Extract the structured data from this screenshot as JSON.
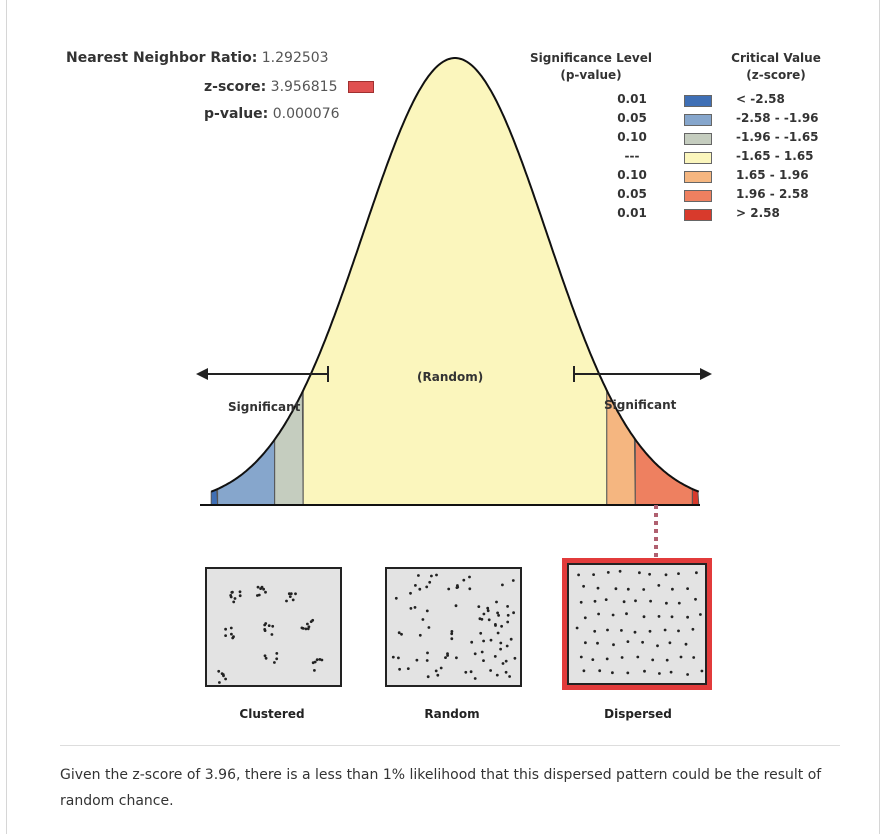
{
  "stats": {
    "nnr_label": "Nearest Neighbor Ratio:",
    "nnr_value": "1.292503",
    "z_label": "z-score:",
    "z_value": "3.956815",
    "p_label": "p-value:",
    "p_value": "0.000076"
  },
  "legend": {
    "sig_header_1": "Significance Level",
    "sig_header_2": "(p-value)",
    "crit_header_1": "Critical Value",
    "crit_header_2": "(z-score)",
    "rows": [
      {
        "p": "0.01",
        "z": "< -2.58",
        "color": "#3f6fb5"
      },
      {
        "p": "0.05",
        "z": "-2.58 - -1.96",
        "color": "#86a6cc"
      },
      {
        "p": "0.10",
        "z": "-1.96 - -1.65",
        "color": "#c5cdbf"
      },
      {
        "p": "---",
        "z": "-1.65 - 1.65",
        "color": "#fbf6bd"
      },
      {
        "p": "0.10",
        "z": "1.65 - 1.96",
        "color": "#f5b680"
      },
      {
        "p": "0.05",
        "z": "1.96 - 2.58",
        "color": "#ee8060"
      },
      {
        "p": "0.01",
        "z": "> 2.58",
        "color": "#d83a2c"
      }
    ]
  },
  "curve": {
    "random_label": "(Random)",
    "significant_left": "Significant",
    "significant_right": "Significant"
  },
  "patterns": {
    "clustered": "Clustered",
    "random": "Random",
    "dispersed": "Dispersed"
  },
  "conclusion": "Given the z-score of 3.96, there is a less than 1% likelihood that this dispersed pattern could be the result of random chance."
}
